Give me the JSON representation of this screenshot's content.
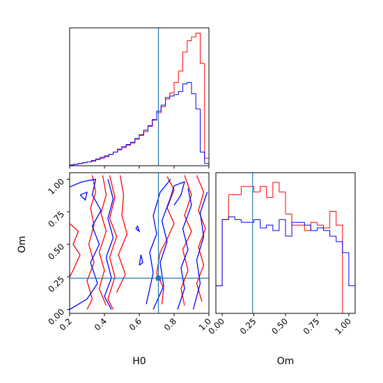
{
  "chart_data": [
    {
      "panel": "H0 histogram",
      "type": "histogram",
      "xlim": [
        0.2,
        1.0
      ],
      "truth": 0.71,
      "bin_edges": [
        0.2,
        0.225,
        0.25,
        0.275,
        0.3,
        0.325,
        0.35,
        0.375,
        0.4,
        0.425,
        0.45,
        0.475,
        0.5,
        0.525,
        0.55,
        0.575,
        0.6,
        0.625,
        0.65,
        0.675,
        0.7,
        0.725,
        0.75,
        0.775,
        0.8,
        0.825,
        0.85,
        0.875,
        0.9,
        0.925,
        0.95,
        0.975,
        1.0
      ],
      "series": [
        {
          "color": "#ff0000",
          "values": [
            1,
            2,
            3,
            4,
            5,
            6,
            8,
            10,
            12,
            15,
            18,
            21,
            24,
            27,
            30,
            35,
            40,
            45,
            52,
            60,
            70,
            78,
            88,
            96,
            110,
            125,
            150,
            165,
            170,
            175,
            135,
            10
          ]
        },
        {
          "color": "#0000ff",
          "values": [
            1,
            2,
            3,
            4,
            5,
            7,
            9,
            11,
            13,
            15,
            18,
            22,
            25,
            28,
            31,
            36,
            41,
            47,
            53,
            61,
            72,
            80,
            90,
            92,
            94,
            98,
            108,
            110,
            95,
            75,
            18,
            3
          ]
        }
      ]
    },
    {
      "panel": "H0 vs Om 2D",
      "type": "contour",
      "xlabel": "H0",
      "ylabel": "Om",
      "xlim": [
        0.2,
        1.0
      ],
      "ylim": [
        0.0,
        1.0
      ],
      "xticks": [
        "0.2",
        "0.4",
        "0.6",
        "0.8",
        "1.0"
      ],
      "yticks": [
        "0.00",
        "0.25",
        "0.50",
        "0.75",
        "1.00"
      ],
      "truth": {
        "x": 0.71,
        "y": 0.24
      },
      "red_contours": [
        [
          [
            0.33,
            1.03
          ],
          [
            0.35,
            0.9
          ],
          [
            0.32,
            0.78
          ],
          [
            0.34,
            0.65
          ],
          [
            0.31,
            0.5
          ],
          [
            0.34,
            0.36
          ],
          [
            0.3,
            0.22
          ],
          [
            0.33,
            0.08
          ],
          [
            0.3,
            0.0
          ]
        ],
        [
          [
            0.39,
            1.03
          ],
          [
            0.41,
            0.88
          ],
          [
            0.38,
            0.74
          ],
          [
            0.41,
            0.6
          ],
          [
            0.37,
            0.44
          ],
          [
            0.4,
            0.3
          ],
          [
            0.37,
            0.16
          ],
          [
            0.41,
            0.03
          ]
        ],
        [
          [
            0.43,
            1.03
          ],
          [
            0.46,
            0.86
          ],
          [
            0.43,
            0.7
          ],
          [
            0.47,
            0.56
          ],
          [
            0.43,
            0.4
          ],
          [
            0.46,
            0.25
          ],
          [
            0.42,
            0.08
          ],
          [
            0.45,
            0.0
          ]
        ],
        [
          [
            0.49,
            1.03
          ],
          [
            0.51,
            0.88
          ],
          [
            0.5,
            0.72
          ],
          [
            0.53,
            0.58
          ],
          [
            0.48,
            0.42
          ],
          [
            0.52,
            0.27
          ],
          [
            0.47,
            0.13
          ]
        ],
        [
          [
            0.2,
            0.66
          ],
          [
            0.25,
            0.6
          ],
          [
            0.22,
            0.5
          ],
          [
            0.26,
            0.42
          ],
          [
            0.22,
            0.3
          ],
          [
            0.2,
            0.25
          ]
        ],
        [
          [
            0.76,
            1.02
          ],
          [
            0.8,
            0.92
          ],
          [
            0.76,
            0.78
          ],
          [
            0.8,
            0.66
          ],
          [
            0.76,
            0.54
          ],
          [
            0.72,
            0.44
          ],
          [
            0.7,
            0.28
          ],
          [
            0.74,
            0.16
          ],
          [
            0.73,
            0.04
          ]
        ],
        [
          [
            0.86,
            1.03
          ],
          [
            0.9,
            0.88
          ],
          [
            0.86,
            0.72
          ],
          [
            0.9,
            0.6
          ],
          [
            0.85,
            0.46
          ],
          [
            0.88,
            0.3
          ],
          [
            0.84,
            0.16
          ],
          [
            0.86,
            0.03
          ]
        ],
        [
          [
            0.93,
            1.03
          ],
          [
            0.97,
            0.9
          ],
          [
            0.94,
            0.76
          ],
          [
            0.98,
            0.62
          ],
          [
            0.94,
            0.48
          ],
          [
            0.97,
            0.34
          ],
          [
            0.93,
            0.2
          ],
          [
            0.96,
            0.06
          ]
        ]
      ],
      "blue_contours": [
        [
          [
            0.2,
            0.94
          ],
          [
            0.27,
            0.98
          ],
          [
            0.35,
            1.0
          ],
          [
            0.33,
            0.88
          ],
          [
            0.38,
            0.76
          ],
          [
            0.33,
            0.64
          ],
          [
            0.37,
            0.5
          ],
          [
            0.32,
            0.36
          ],
          [
            0.36,
            0.2
          ],
          [
            0.3,
            0.08
          ],
          [
            0.2,
            0.0
          ]
        ],
        [
          [
            0.42,
            1.0
          ],
          [
            0.45,
            0.85
          ],
          [
            0.42,
            0.7
          ],
          [
            0.45,
            0.55
          ],
          [
            0.41,
            0.4
          ],
          [
            0.44,
            0.24
          ],
          [
            0.4,
            0.1
          ],
          [
            0.44,
            0.0
          ]
        ],
        [
          [
            0.26,
            0.88
          ],
          [
            0.3,
            0.9
          ],
          [
            0.29,
            0.84
          ],
          [
            0.26,
            0.88
          ]
        ],
        [
          [
            0.64,
            0.04
          ],
          [
            0.68,
            0.28
          ],
          [
            0.66,
            0.44
          ],
          [
            0.7,
            0.58
          ],
          [
            0.68,
            0.72
          ],
          [
            0.72,
            0.9
          ],
          [
            0.78,
            1.0
          ]
        ],
        [
          [
            0.68,
            0.0
          ],
          [
            0.74,
            0.18
          ],
          [
            0.72,
            0.36
          ],
          [
            0.76,
            0.52
          ],
          [
            0.73,
            0.68
          ],
          [
            0.78,
            0.86
          ],
          [
            0.8,
            0.95
          ],
          [
            0.86,
            0.98
          ],
          [
            0.84,
            0.88
          ],
          [
            0.8,
            0.8
          ]
        ],
        [
          [
            0.82,
            0.0
          ],
          [
            0.86,
            0.16
          ],
          [
            0.84,
            0.32
          ],
          [
            0.88,
            0.46
          ],
          [
            0.85,
            0.62
          ],
          [
            0.9,
            0.8
          ],
          [
            0.88,
            0.93
          ]
        ],
        [
          [
            0.91,
            0.0
          ],
          [
            0.95,
            0.2
          ],
          [
            0.93,
            0.38
          ],
          [
            0.97,
            0.56
          ],
          [
            0.95,
            0.74
          ],
          [
            0.99,
            0.9
          ]
        ],
        [
          [
            0.58,
            0.62
          ],
          [
            0.6,
            0.6
          ],
          [
            0.59,
            0.64
          ],
          [
            0.58,
            0.62
          ]
        ],
        [
          [
            0.6,
            0.34
          ],
          [
            0.61,
            0.42
          ],
          [
            0.62,
            0.36
          ],
          [
            0.6,
            0.34
          ]
        ]
      ]
    },
    {
      "panel": "Om histogram",
      "type": "histogram",
      "xlabel": "Om",
      "xlim": [
        -0.05,
        1.05
      ],
      "xticks": [
        "0.00",
        "0.25",
        "0.50",
        "0.75",
        "1.00"
      ],
      "truth": 0.24,
      "bin_edges": [
        -0.05,
        0.0,
        0.05,
        0.1,
        0.15,
        0.2,
        0.25,
        0.3,
        0.35,
        0.4,
        0.45,
        0.5,
        0.55,
        0.6,
        0.65,
        0.7,
        0.75,
        0.8,
        0.85,
        0.9,
        0.95,
        1.0,
        1.05
      ],
      "series": [
        {
          "color": "#ff0000",
          "values": [
            0.2,
            0.68,
            0.86,
            0.86,
            0.92,
            0.92,
            0.88,
            0.92,
            0.84,
            0.95,
            0.88,
            0.72,
            0.64,
            0.64,
            0.6,
            0.66,
            0.64,
            0.62,
            0.74,
            0.64,
            0.0,
            0.0
          ]
        },
        {
          "color": "#0000ff",
          "values": [
            0.2,
            0.68,
            0.7,
            0.68,
            0.66,
            0.66,
            0.68,
            0.62,
            0.64,
            0.6,
            0.68,
            0.56,
            0.66,
            0.66,
            0.64,
            0.6,
            0.62,
            0.6,
            0.56,
            0.52,
            0.44,
            0.2
          ]
        }
      ]
    }
  ]
}
